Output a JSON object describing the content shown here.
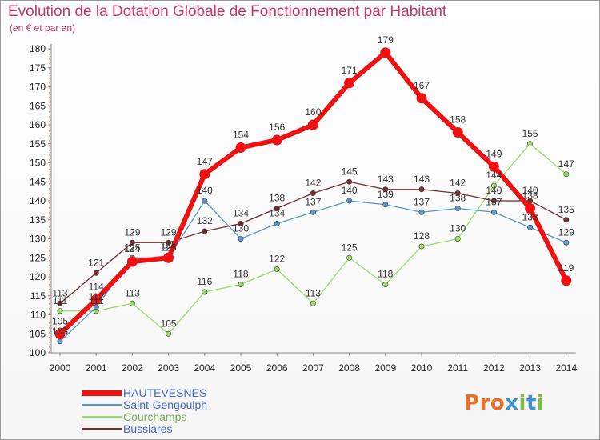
{
  "header": {
    "title": "Evolution de la Dotation Globale de Fonctionnement par Habitant",
    "subtitle": "(en € et par an)"
  },
  "logo": {
    "text": "Proxiti",
    "colors": [
      "#e8702a",
      "#e8702a",
      "#e8702a",
      "#3f8fd0",
      "#7cbf3a",
      "#3f8fd0",
      "#7cbf3a"
    ]
  },
  "chart_data": {
    "type": "line",
    "x": [
      "2000",
      "2001",
      "2002",
      "2003",
      "2004",
      "2005",
      "2006",
      "2007",
      "2008",
      "2009",
      "2010",
      "2011",
      "2012",
      "2013",
      "2014"
    ],
    "ylim": [
      100,
      180
    ],
    "yticks": [
      100,
      105,
      110,
      115,
      120,
      125,
      130,
      135,
      140,
      145,
      150,
      155,
      160,
      165,
      170,
      175,
      180
    ],
    "grid": false,
    "legend_position": "bottom-left",
    "series": [
      {
        "name": "HAUTEVESNES",
        "color": "#ee1111",
        "values": [
          105,
          114,
          124,
          125,
          147,
          154,
          156,
          160,
          171,
          179,
          167,
          158,
          149,
          138,
          119
        ]
      },
      {
        "name": "Saint-Gengoulph",
        "color": "#5599cc",
        "values": [
          103,
          112,
          125,
          125,
          140,
          130,
          134,
          137,
          140,
          139,
          137,
          138,
          137,
          133,
          129
        ]
      },
      {
        "name": "Courchamps",
        "color": "#99dd66",
        "values": [
          111,
          111,
          113,
          105,
          116,
          118,
          122,
          113,
          125,
          118,
          128,
          130,
          144,
          155,
          147
        ]
      },
      {
        "name": "Bussiares",
        "color": "#7a2a2a",
        "values": [
          113,
          121,
          129,
          129,
          132,
          134,
          138,
          142,
          145,
          143,
          143,
          142,
          140,
          140,
          135
        ]
      }
    ]
  }
}
